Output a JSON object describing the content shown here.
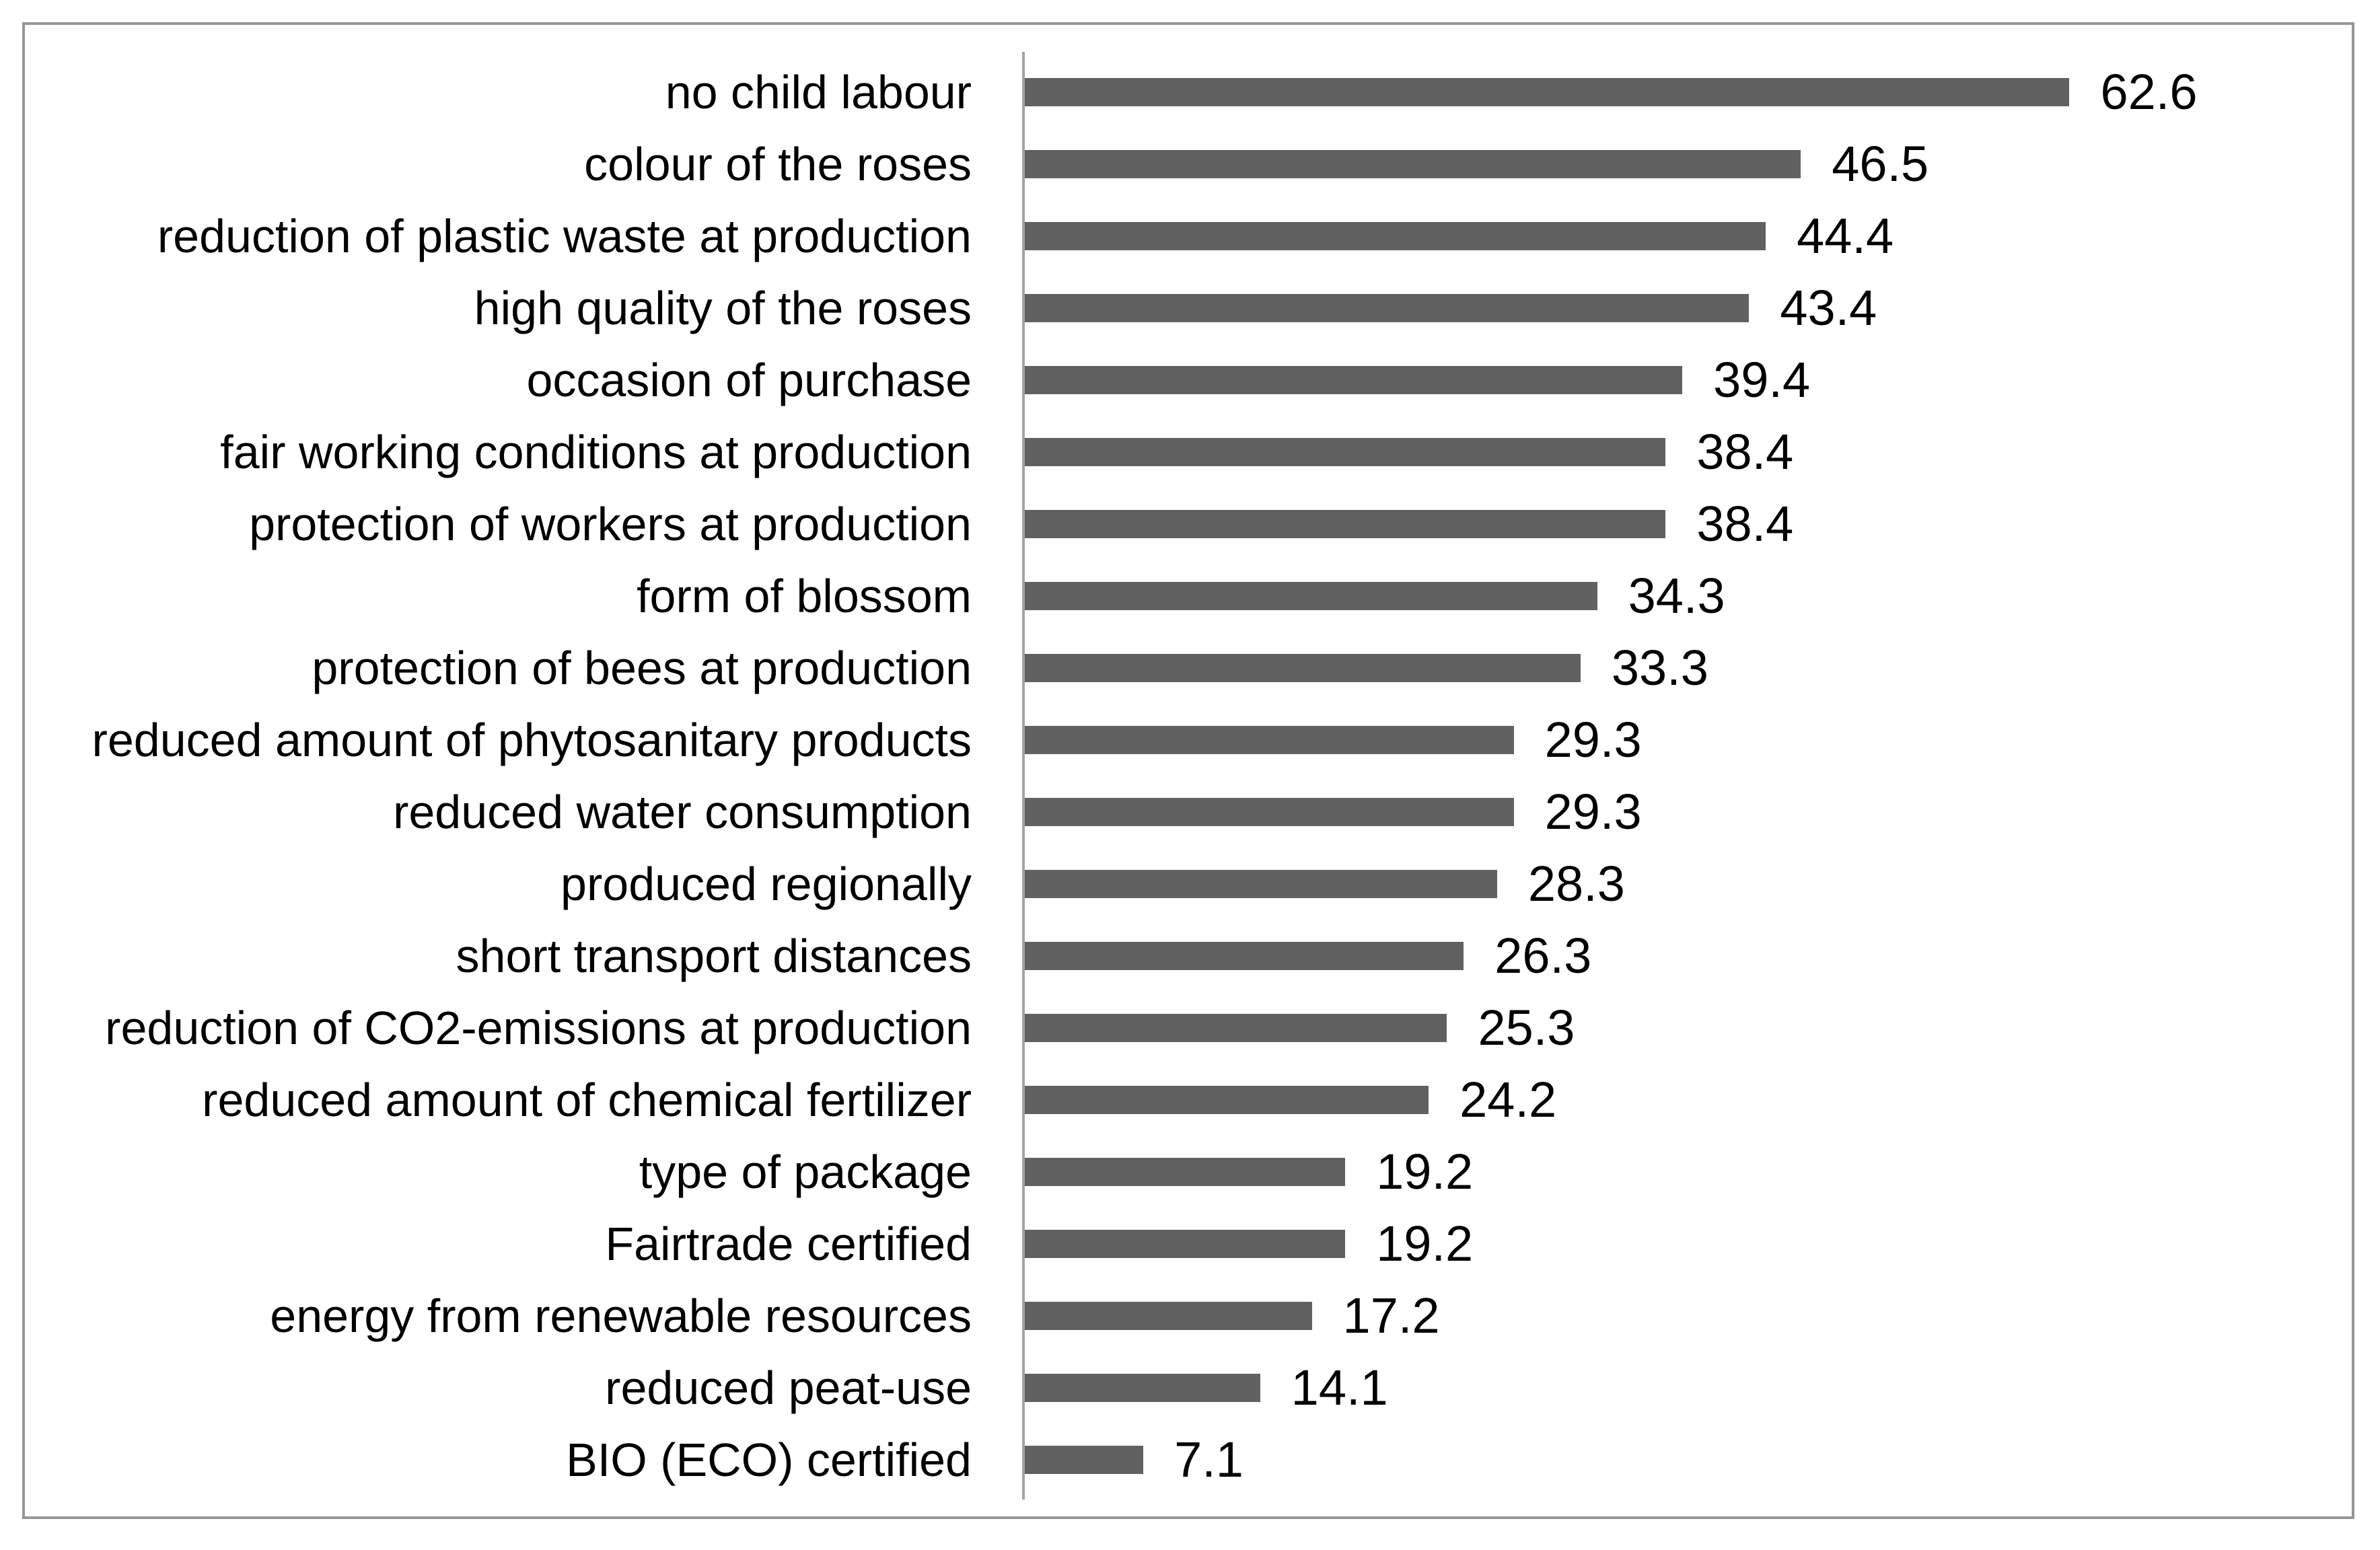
{
  "chart_data": {
    "type": "bar",
    "orientation": "horizontal",
    "title": "",
    "xlabel": "",
    "ylabel": "",
    "grid": false,
    "legend": false,
    "xlim": [
      0,
      80
    ],
    "bar_color": "#616161",
    "axis_color": "#a3a3a3",
    "frame_border_color": "#969696",
    "text_color": "#000000",
    "categories": [
      "no child labour",
      "colour of the roses",
      "reduction of plastic waste at production",
      "high quality of the roses",
      "occasion of purchase",
      "fair working conditions at production",
      "protection of workers at production",
      "form of blossom",
      "protection of bees at production",
      "reduced amount of phytosanitary products",
      "reduced water consumption",
      "produced regionally",
      "short transport distances",
      "reduction of CO2-emissions at production",
      "reduced amount of chemical fertilizer",
      "type of package",
      "Fairtrade certified",
      "energy from renewable resources",
      "reduced peat-use",
      "BIO (ECO) certified"
    ],
    "values": [
      62.6,
      46.5,
      44.4,
      43.4,
      39.4,
      38.4,
      38.4,
      34.3,
      33.3,
      29.3,
      29.3,
      28.3,
      26.3,
      25.3,
      24.2,
      19.2,
      19.2,
      17.2,
      14.1,
      7.1
    ]
  }
}
